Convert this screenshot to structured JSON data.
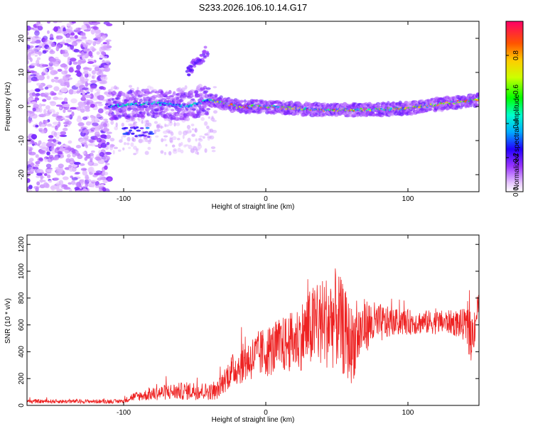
{
  "title": "S233.2026.106.10.14.G17",
  "chart_data": [
    {
      "type": "heatmap",
      "xlabel": "Height of straight line (km)",
      "ylabel": "Frequency (Hz)",
      "xlim": [
        -168,
        150
      ],
      "ylim": [
        -25,
        25
      ],
      "xticks": [
        -100,
        0,
        100
      ],
      "yticks": [
        -20,
        -10,
        0,
        10,
        20
      ],
      "colorbar": {
        "label": "Normalized spectral amplitude",
        "range": [
          0,
          1
        ],
        "ticks": [
          0.0,
          0.2,
          0.4,
          0.6,
          0.8
        ],
        "tick_labels": [
          "0.0",
          "0.2",
          "0.4",
          "0.6",
          "0.8"
        ]
      },
      "ridge": {
        "description_points_x": [
          -110,
          -80,
          -55,
          -40,
          -20,
          0,
          40,
          70,
          100,
          120,
          150
        ],
        "frequency_hz": [
          0,
          1,
          0,
          2,
          0,
          0,
          -1,
          -1,
          -0.5,
          0.5,
          2
        ]
      },
      "burst": {
        "x": [
          -55,
          -42
        ],
        "frequency_hz": [
          10,
          16
        ]
      }
    },
    {
      "type": "line",
      "xlabel": "Height of straight line (km)",
      "ylabel": "SNR (10 * v/v)",
      "xlim": [
        -168,
        150
      ],
      "ylim": [
        0,
        1270
      ],
      "xticks": [
        -100,
        0,
        100
      ],
      "yticks": [
        0,
        200,
        400,
        600,
        800,
        1000,
        1200
      ],
      "series": [
        {
          "name": "SNR",
          "color": "#ee2222",
          "envelope_x": [
            -168,
            -100,
            -95,
            -70,
            -50,
            -35,
            -25,
            -15,
            -5,
            5,
            20,
            35,
            50,
            60,
            70,
            90,
            110,
            130,
            140,
            145,
            150
          ],
          "envelope_mean": [
            30,
            30,
            60,
            100,
            110,
            100,
            250,
            320,
            380,
            420,
            480,
            600,
            650,
            450,
            600,
            620,
            620,
            620,
            600,
            500,
            780
          ],
          "envelope_amp": [
            15,
            15,
            30,
            60,
            70,
            60,
            120,
            150,
            180,
            200,
            230,
            320,
            380,
            300,
            200,
            100,
            90,
            90,
            120,
            200,
            100
          ]
        }
      ]
    }
  ]
}
